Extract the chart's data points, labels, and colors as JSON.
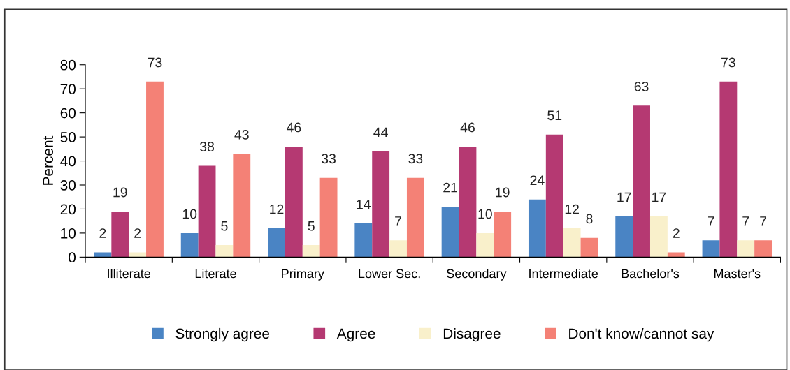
{
  "chart_data": {
    "type": "bar",
    "ylabel": "Percent",
    "categories": [
      "Illiterate",
      "Literate",
      "Primary",
      "Lower Sec.",
      "Secondary",
      "Intermediate",
      "Bachelor's",
      "Master's"
    ],
    "series": [
      {
        "name": "Strongly agree",
        "color": "#4a84c4",
        "values": [
          2,
          10,
          12,
          14,
          21,
          24,
          17,
          7
        ]
      },
      {
        "name": "Agree",
        "color": "#b53972",
        "values": [
          19,
          38,
          46,
          44,
          46,
          51,
          63,
          73
        ]
      },
      {
        "name": "Disagree",
        "color": "#f9f0cb",
        "values": [
          2,
          5,
          5,
          7,
          10,
          12,
          17,
          7
        ]
      },
      {
        "name": "Don't know/cannot say",
        "color": "#f48176",
        "values": [
          73,
          43,
          33,
          33,
          19,
          8,
          2,
          7
        ]
      }
    ],
    "ylim": [
      0,
      80
    ],
    "yticks": [
      0,
      10,
      20,
      30,
      40,
      50,
      60,
      70,
      80
    ],
    "data_labels": true,
    "grid": false,
    "legend": "bottom"
  }
}
